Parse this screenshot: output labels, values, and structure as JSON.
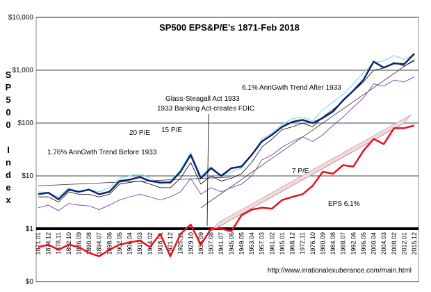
{
  "chart_data": {
    "type": "line",
    "title": "SP500 EPS&P/E's 1871-Feb 2018",
    "y_label": "SP500 Index",
    "log_scale": true,
    "grid": true,
    "ylim": [
      0.1,
      10000
    ],
    "yticks": [
      {
        "value": 0.1,
        "label": "$0"
      },
      {
        "value": 1,
        "label": "$1"
      },
      {
        "value": 10,
        "label": "$10"
      },
      {
        "value": 100,
        "label": "$100"
      },
      {
        "value": 1000,
        "label": "$1,000"
      },
      {
        "value": 10000,
        "label": "$10,000"
      }
    ],
    "categories": [
      "1871.01",
      "1874.12",
      "1878.11",
      "1882.10",
      "1886.09",
      "1890.08",
      "1894.07",
      "1898.06",
      "1902.05",
      "1906.04",
      "1910.03",
      "1914.02",
      "1918.01",
      "1921.12",
      "1925.11",
      "1929.10",
      "1933.09",
      "1937.08",
      "1941.07",
      "1945.06",
      "1949.05",
      "1953.04",
      "1957.03",
      "1961.02",
      "1965.01",
      "1968.12",
      "1972.11",
      "1976.10",
      "1980.09",
      "1984.08",
      "1988.07",
      "1992.06",
      "1996.05",
      "2000.04",
      "2004.03",
      "2008.02",
      "2012.01",
      "2015.12"
    ],
    "series": [
      {
        "color": "#66e0e8",
        "width": 1,
        "values": [
          5,
          4.8,
          4,
          6,
          5,
          5.5,
          5,
          6,
          9,
          10,
          11,
          9,
          7,
          8,
          13,
          28,
          10,
          15,
          10,
          12,
          14,
          25,
          50,
          65,
          95,
          120,
          130,
          110,
          180,
          250,
          350,
          550,
          900,
          1400,
          1500,
          1900,
          1600,
          2000
        ]
      },
      {
        "color": "#000000",
        "width": 0.8,
        "values": [
          4,
          4,
          3.2,
          5,
          4.5,
          4.5,
          4,
          4.5,
          7,
          7.5,
          8,
          7,
          6,
          6,
          9,
          18,
          7,
          10,
          8,
          9,
          11,
          18,
          35,
          50,
          75,
          85,
          100,
          85,
          130,
          180,
          260,
          400,
          600,
          1000,
          1100,
          1400,
          1200,
          1500
        ]
      },
      {
        "color": "#8a4fb0",
        "width": 1,
        "values": [
          2.5,
          2.8,
          2.2,
          3,
          2.8,
          2.7,
          2.3,
          2.8,
          3.5,
          4,
          4.5,
          4,
          3.5,
          4,
          5,
          9,
          4.5,
          6,
          5,
          6,
          7,
          10,
          20,
          25,
          35,
          45,
          55,
          45,
          60,
          90,
          130,
          200,
          300,
          550,
          500,
          650,
          600,
          750
        ]
      },
      {
        "color": "#14206e",
        "width": 2.5,
        "values": [
          4.5,
          4.8,
          3.6,
          5.5,
          5,
          5.5,
          4.5,
          5,
          8,
          8.5,
          9.5,
          8,
          7.5,
          7.5,
          12,
          25,
          9,
          14,
          10,
          14,
          15,
          25,
          45,
          60,
          85,
          105,
          115,
          100,
          125,
          165,
          270,
          410,
          660,
          1450,
          1120,
          1350,
          1300,
          2050
        ]
      },
      {
        "color": "#e8101a",
        "width": 2.5,
        "values": [
          0.45,
          0.5,
          0.4,
          0.5,
          0.45,
          0.35,
          0.3,
          0.4,
          0.5,
          0.55,
          0.6,
          0.45,
          0.8,
          0.3,
          0.8,
          1.2,
          0.5,
          1,
          1,
          0.9,
          1.8,
          2.3,
          2.5,
          2.4,
          3.5,
          4,
          4.5,
          6.5,
          12,
          11,
          16,
          15,
          30,
          50,
          40,
          80,
          80,
          90
        ]
      }
    ],
    "trend_lines": [
      {
        "label": "1.76% AnnGwth Trend Before 1933",
        "x": [
          "1871.01",
          "1945.06"
        ],
        "values": [
          6.5,
          9.5
        ]
      },
      {
        "label": "6.1% AnnGwth Trend After 1933",
        "x": [
          "1933.09",
          "2015.12"
        ],
        "values": [
          2.5,
          1600
        ]
      },
      {
        "label": "EPS 6.1%",
        "x": [
          "1937.08",
          "2012.01"
        ],
        "values": [
          0.9,
          100
        ]
      }
    ],
    "annotations": [
      "Glass-Steagall Act 1933",
      "1933 Banking Act-creates FDIC",
      "20 P/E",
      "15 P/E",
      "7 P/E",
      "http://www.irrationalexuberance.com/main.html"
    ]
  }
}
